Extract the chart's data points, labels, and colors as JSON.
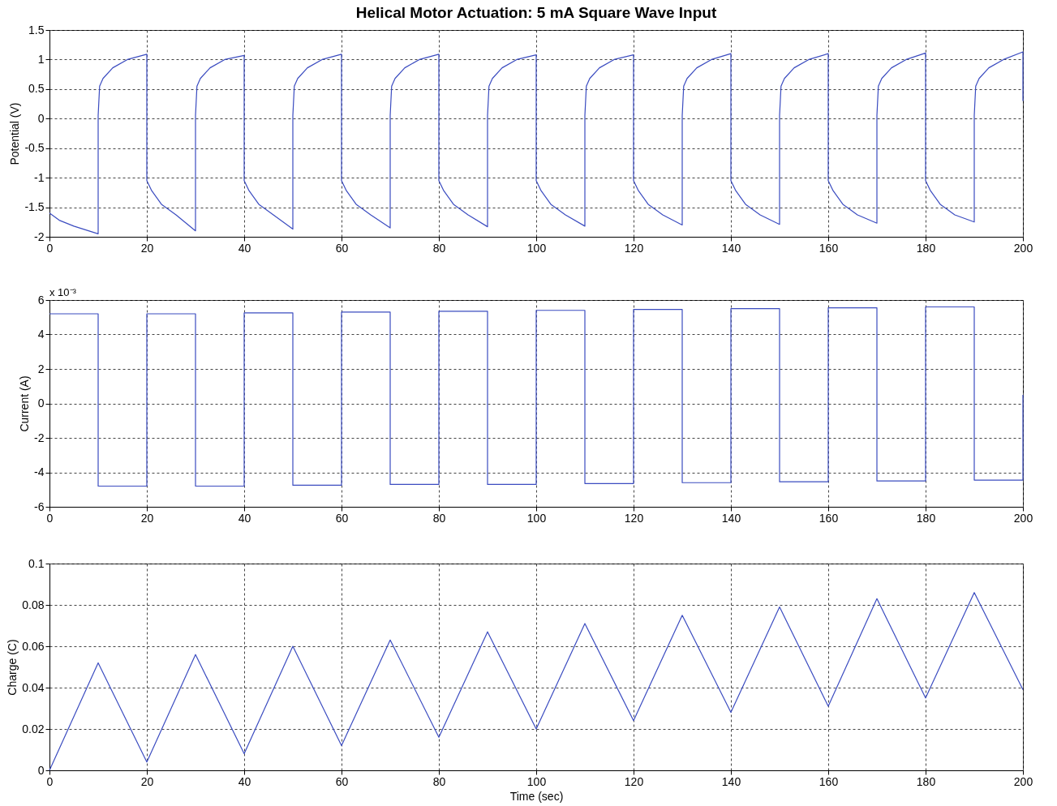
{
  "chart_data": [
    {
      "type": "line",
      "title": "Helical Motor Actuation: 5 mA Square Wave Input",
      "ylabel": "Potential (V)",
      "xlim": [
        0,
        200
      ],
      "xticks": [
        0,
        20,
        40,
        60,
        80,
        100,
        120,
        140,
        160,
        180,
        200
      ],
      "ylim": [
        -2,
        1.5
      ],
      "yticks": [
        -2,
        -1.5,
        -1,
        -0.5,
        0,
        0.5,
        1,
        1.5
      ],
      "grid": true,
      "legend": false,
      "series": [
        {
          "color": "#3b4cc0",
          "x": [
            0,
            2,
            5,
            10,
            10,
            10.3,
            11,
            13,
            16,
            20,
            20,
            21,
            23,
            26,
            30,
            30,
            30.3,
            31,
            33,
            36,
            40,
            40,
            41,
            43,
            46,
            50,
            50,
            50.3,
            51,
            53,
            56,
            60,
            60,
            61,
            63,
            66,
            70,
            70,
            70.3,
            71,
            73,
            76,
            80,
            80,
            81,
            83,
            86,
            90,
            90,
            90.3,
            91,
            93,
            96,
            100,
            100,
            101,
            103,
            106,
            110,
            110,
            110.3,
            111,
            113,
            116,
            120,
            120,
            121,
            123,
            126,
            130,
            130,
            130.3,
            131,
            133,
            136,
            140,
            140,
            141,
            143,
            146,
            150,
            150,
            150.3,
            151,
            153,
            156,
            160,
            160,
            161,
            163,
            166,
            170,
            170,
            170.3,
            171,
            173,
            176,
            180,
            180,
            181,
            183,
            186,
            190,
            190,
            190.3,
            191,
            193,
            196,
            200,
            200
          ],
          "values": [
            -1.6,
            -1.72,
            -1.82,
            -1.95,
            0.05,
            0.55,
            0.68,
            0.86,
            1.0,
            1.09,
            -1.05,
            -1.22,
            -1.45,
            -1.63,
            -1.9,
            0.05,
            0.55,
            0.68,
            0.86,
            1.0,
            1.07,
            -1.05,
            -1.22,
            -1.45,
            -1.63,
            -1.87,
            0.05,
            0.55,
            0.68,
            0.86,
            1.0,
            1.09,
            -1.05,
            -1.22,
            -1.45,
            -1.63,
            -1.85,
            0.05,
            0.55,
            0.68,
            0.86,
            1.0,
            1.09,
            -1.05,
            -1.22,
            -1.45,
            -1.63,
            -1.83,
            0.05,
            0.55,
            0.68,
            0.86,
            1.0,
            1.08,
            -1.05,
            -1.22,
            -1.45,
            -1.63,
            -1.82,
            0.05,
            0.55,
            0.68,
            0.86,
            1.0,
            1.08,
            -1.05,
            -1.22,
            -1.45,
            -1.63,
            -1.8,
            0.05,
            0.55,
            0.68,
            0.86,
            1.0,
            1.1,
            -1.05,
            -1.22,
            -1.45,
            -1.63,
            -1.79,
            0.05,
            0.55,
            0.68,
            0.86,
            1.0,
            1.1,
            -1.05,
            -1.22,
            -1.45,
            -1.63,
            -1.77,
            0.05,
            0.55,
            0.68,
            0.86,
            1.0,
            1.11,
            -1.05,
            -1.22,
            -1.45,
            -1.63,
            -1.75,
            0.05,
            0.55,
            0.68,
            0.86,
            1.0,
            1.13,
            0.3
          ]
        }
      ]
    },
    {
      "type": "step",
      "ylabel": "Current (A)",
      "annotations": [
        "x 10⁻³"
      ],
      "xlim": [
        0,
        200
      ],
      "xticks": [
        0,
        20,
        40,
        60,
        80,
        100,
        120,
        140,
        160,
        180,
        200
      ],
      "ylim": [
        -6,
        6
      ],
      "yticks": [
        -6,
        -4,
        -2,
        0,
        2,
        4,
        6
      ],
      "grid": true,
      "legend": false,
      "series": [
        {
          "color": "#3b4cc0",
          "x": [
            0,
            10,
            20,
            30,
            40,
            50,
            60,
            70,
            80,
            90,
            100,
            110,
            120,
            130,
            140,
            150,
            160,
            170,
            180,
            190,
            200
          ],
          "values": [
            5.2,
            -4.8,
            5.2,
            -4.8,
            5.25,
            -4.75,
            5.3,
            -4.7,
            5.35,
            -4.7,
            5.4,
            -4.65,
            5.45,
            -4.6,
            5.5,
            -4.55,
            5.55,
            -4.5,
            5.6,
            -4.45,
            0.5
          ]
        }
      ]
    },
    {
      "type": "line",
      "xlabel": "Time (sec)",
      "ylabel": "Charge (C)",
      "xlim": [
        0,
        200
      ],
      "xticks": [
        0,
        20,
        40,
        60,
        80,
        100,
        120,
        140,
        160,
        180,
        200
      ],
      "ylim": [
        0,
        0.1
      ],
      "yticks": [
        0,
        0.02,
        0.04,
        0.06,
        0.08,
        0.1
      ],
      "grid": true,
      "legend": false,
      "series": [
        {
          "color": "#3b4cc0",
          "x": [
            0,
            10,
            20,
            30,
            40,
            50,
            60,
            70,
            80,
            90,
            100,
            110,
            120,
            130,
            140,
            150,
            160,
            170,
            180,
            190,
            200
          ],
          "values": [
            0,
            0.052,
            0.004,
            0.056,
            0.008,
            0.06,
            0.012,
            0.063,
            0.016,
            0.067,
            0.02,
            0.071,
            0.024,
            0.075,
            0.028,
            0.079,
            0.031,
            0.083,
            0.035,
            0.086,
            0.039
          ]
        }
      ]
    }
  ]
}
